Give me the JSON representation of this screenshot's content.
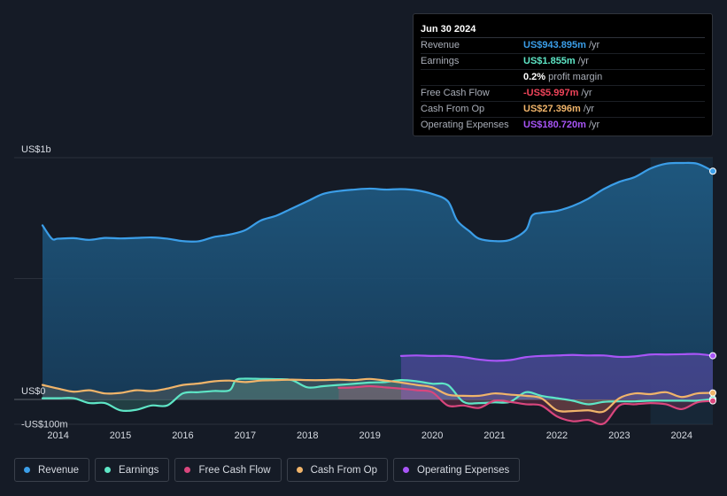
{
  "tooltip": {
    "date": "Jun 30 2024",
    "rows": [
      {
        "label": "Revenue",
        "value": "US$943.895m",
        "unit": "/yr",
        "color": "#3b9ee8"
      },
      {
        "label": "Earnings",
        "value": "US$1.855m",
        "unit": "/yr",
        "color": "#5ee6c6"
      },
      {
        "label": "",
        "value": "0.2%",
        "unit": "profit margin",
        "color": "#ffffff"
      },
      {
        "label": "Free Cash Flow",
        "value": "-US$5.997m",
        "unit": "/yr",
        "color": "#f0445a"
      },
      {
        "label": "Cash From Op",
        "value": "US$27.396m",
        "unit": "/yr",
        "color": "#f0b46a"
      },
      {
        "label": "Operating Expenses",
        "value": "US$180.720m",
        "unit": "/yr",
        "color": "#a855f7"
      }
    ]
  },
  "legend": [
    {
      "label": "Revenue",
      "color": "#3b9ee8"
    },
    {
      "label": "Earnings",
      "color": "#5ee6c6"
    },
    {
      "label": "Free Cash Flow",
      "color": "#d9467d"
    },
    {
      "label": "Cash From Op",
      "color": "#f0b46a"
    },
    {
      "label": "Operating Expenses",
      "color": "#a855f7"
    }
  ],
  "chart_data": {
    "type": "area",
    "y_tick_labels": [
      "US$1b",
      "US$0",
      "-US$100m"
    ],
    "x_tick_labels": [
      "2014",
      "2015",
      "2016",
      "2017",
      "2018",
      "2019",
      "2020",
      "2021",
      "2022",
      "2023",
      "2024"
    ],
    "ylim": [
      -200,
      1000
    ],
    "xlim": [
      2013.75,
      2024.5
    ],
    "series": [
      {
        "name": "Revenue",
        "color": "#3b9ee8",
        "points": [
          [
            2013.75,
            720
          ],
          [
            2013.9,
            665
          ],
          [
            2014.0,
            665
          ],
          [
            2014.25,
            667
          ],
          [
            2014.5,
            660
          ],
          [
            2014.75,
            668
          ],
          [
            2015.0,
            666
          ],
          [
            2015.25,
            668
          ],
          [
            2015.5,
            670
          ],
          [
            2015.75,
            665
          ],
          [
            2016.0,
            655
          ],
          [
            2016.25,
            654
          ],
          [
            2016.5,
            672
          ],
          [
            2016.75,
            682
          ],
          [
            2017.0,
            700
          ],
          [
            2017.25,
            740
          ],
          [
            2017.5,
            760
          ],
          [
            2017.75,
            790
          ],
          [
            2018.0,
            820
          ],
          [
            2018.25,
            850
          ],
          [
            2018.5,
            862
          ],
          [
            2018.75,
            868
          ],
          [
            2019.0,
            872
          ],
          [
            2019.25,
            868
          ],
          [
            2019.5,
            870
          ],
          [
            2019.75,
            865
          ],
          [
            2020.0,
            850
          ],
          [
            2020.25,
            820
          ],
          [
            2020.4,
            740
          ],
          [
            2020.6,
            695
          ],
          [
            2020.75,
            665
          ],
          [
            2021.0,
            655
          ],
          [
            2021.25,
            660
          ],
          [
            2021.5,
            700
          ],
          [
            2021.6,
            760
          ],
          [
            2021.75,
            772
          ],
          [
            2022.0,
            780
          ],
          [
            2022.25,
            800
          ],
          [
            2022.5,
            830
          ],
          [
            2022.75,
            870
          ],
          [
            2023.0,
            900
          ],
          [
            2023.25,
            920
          ],
          [
            2023.5,
            955
          ],
          [
            2023.75,
            975
          ],
          [
            2024.0,
            978
          ],
          [
            2024.25,
            975
          ],
          [
            2024.5,
            944
          ]
        ]
      },
      {
        "name": "Earnings",
        "color": "#5ee6c6",
        "points": [
          [
            2013.75,
            5
          ],
          [
            2014.0,
            5
          ],
          [
            2014.25,
            5
          ],
          [
            2014.5,
            -15
          ],
          [
            2014.75,
            -15
          ],
          [
            2015.0,
            -45
          ],
          [
            2015.25,
            -43
          ],
          [
            2015.5,
            -25
          ],
          [
            2015.75,
            -25
          ],
          [
            2016.0,
            25
          ],
          [
            2016.25,
            30
          ],
          [
            2016.5,
            35
          ],
          [
            2016.75,
            38
          ],
          [
            2016.85,
            80
          ],
          [
            2017.0,
            86
          ],
          [
            2017.25,
            85
          ],
          [
            2017.5,
            84
          ],
          [
            2017.75,
            80
          ],
          [
            2018.0,
            50
          ],
          [
            2018.25,
            55
          ],
          [
            2018.5,
            60
          ],
          [
            2018.75,
            65
          ],
          [
            2019.0,
            70
          ],
          [
            2019.25,
            72
          ],
          [
            2019.5,
            80
          ],
          [
            2019.75,
            75
          ],
          [
            2020.0,
            65
          ],
          [
            2020.25,
            60
          ],
          [
            2020.5,
            -10
          ],
          [
            2020.75,
            -15
          ],
          [
            2021.0,
            -12
          ],
          [
            2021.25,
            -10
          ],
          [
            2021.5,
            30
          ],
          [
            2021.75,
            15
          ],
          [
            2022.0,
            5
          ],
          [
            2022.25,
            -5
          ],
          [
            2022.5,
            -20
          ],
          [
            2022.75,
            -10
          ],
          [
            2023.0,
            -8
          ],
          [
            2023.25,
            -8
          ],
          [
            2023.5,
            -5
          ],
          [
            2023.75,
            -5
          ],
          [
            2024.0,
            -5
          ],
          [
            2024.25,
            -5
          ],
          [
            2024.5,
            2
          ]
        ]
      },
      {
        "name": "Free Cash Flow",
        "color": "#d9467d",
        "points": [
          [
            2018.5,
            48
          ],
          [
            2018.75,
            50
          ],
          [
            2019.0,
            55
          ],
          [
            2019.25,
            50
          ],
          [
            2019.5,
            45
          ],
          [
            2019.75,
            38
          ],
          [
            2020.0,
            30
          ],
          [
            2020.25,
            -25
          ],
          [
            2020.5,
            -25
          ],
          [
            2020.75,
            -35
          ],
          [
            2021.0,
            -5
          ],
          [
            2021.25,
            -10
          ],
          [
            2021.5,
            -20
          ],
          [
            2021.75,
            -25
          ],
          [
            2022.0,
            -70
          ],
          [
            2022.25,
            -90
          ],
          [
            2022.5,
            -85
          ],
          [
            2022.75,
            -100
          ],
          [
            2023.0,
            -25
          ],
          [
            2023.25,
            -20
          ],
          [
            2023.5,
            -15
          ],
          [
            2023.75,
            -20
          ],
          [
            2024.0,
            -40
          ],
          [
            2024.25,
            -12
          ],
          [
            2024.5,
            -6
          ]
        ]
      },
      {
        "name": "Cash From Op",
        "color": "#f0b46a",
        "points": [
          [
            2013.75,
            60
          ],
          [
            2014.0,
            45
          ],
          [
            2014.25,
            32
          ],
          [
            2014.5,
            38
          ],
          [
            2014.75,
            25
          ],
          [
            2015.0,
            27
          ],
          [
            2015.25,
            38
          ],
          [
            2015.5,
            35
          ],
          [
            2015.75,
            45
          ],
          [
            2016.0,
            60
          ],
          [
            2016.25,
            66
          ],
          [
            2016.5,
            75
          ],
          [
            2016.75,
            78
          ],
          [
            2017.0,
            72
          ],
          [
            2017.25,
            78
          ],
          [
            2017.5,
            80
          ],
          [
            2017.75,
            82
          ],
          [
            2018.0,
            80
          ],
          [
            2018.25,
            80
          ],
          [
            2018.5,
            82
          ],
          [
            2018.75,
            80
          ],
          [
            2019.0,
            85
          ],
          [
            2019.25,
            78
          ],
          [
            2019.5,
            70
          ],
          [
            2019.75,
            60
          ],
          [
            2020.0,
            50
          ],
          [
            2020.25,
            20
          ],
          [
            2020.5,
            15
          ],
          [
            2020.75,
            15
          ],
          [
            2021.0,
            25
          ],
          [
            2021.25,
            20
          ],
          [
            2021.5,
            15
          ],
          [
            2021.75,
            5
          ],
          [
            2022.0,
            -45
          ],
          [
            2022.25,
            -48
          ],
          [
            2022.5,
            -45
          ],
          [
            2022.75,
            -50
          ],
          [
            2023.0,
            5
          ],
          [
            2023.25,
            25
          ],
          [
            2023.5,
            22
          ],
          [
            2023.75,
            30
          ],
          [
            2024.0,
            10
          ],
          [
            2024.25,
            25
          ],
          [
            2024.5,
            27
          ]
        ]
      },
      {
        "name": "Operating Expenses",
        "color": "#a855f7",
        "points": [
          [
            2019.5,
            180
          ],
          [
            2019.75,
            182
          ],
          [
            2020.0,
            180
          ],
          [
            2020.25,
            180
          ],
          [
            2020.5,
            175
          ],
          [
            2020.75,
            165
          ],
          [
            2021.0,
            160
          ],
          [
            2021.25,
            163
          ],
          [
            2021.5,
            175
          ],
          [
            2021.75,
            180
          ],
          [
            2022.0,
            182
          ],
          [
            2022.25,
            184
          ],
          [
            2022.5,
            182
          ],
          [
            2022.75,
            182
          ],
          [
            2023.0,
            176
          ],
          [
            2023.25,
            178
          ],
          [
            2023.5,
            186
          ],
          [
            2023.75,
            186
          ],
          [
            2024.0,
            187
          ],
          [
            2024.25,
            188
          ],
          [
            2024.5,
            181
          ]
        ]
      }
    ]
  }
}
